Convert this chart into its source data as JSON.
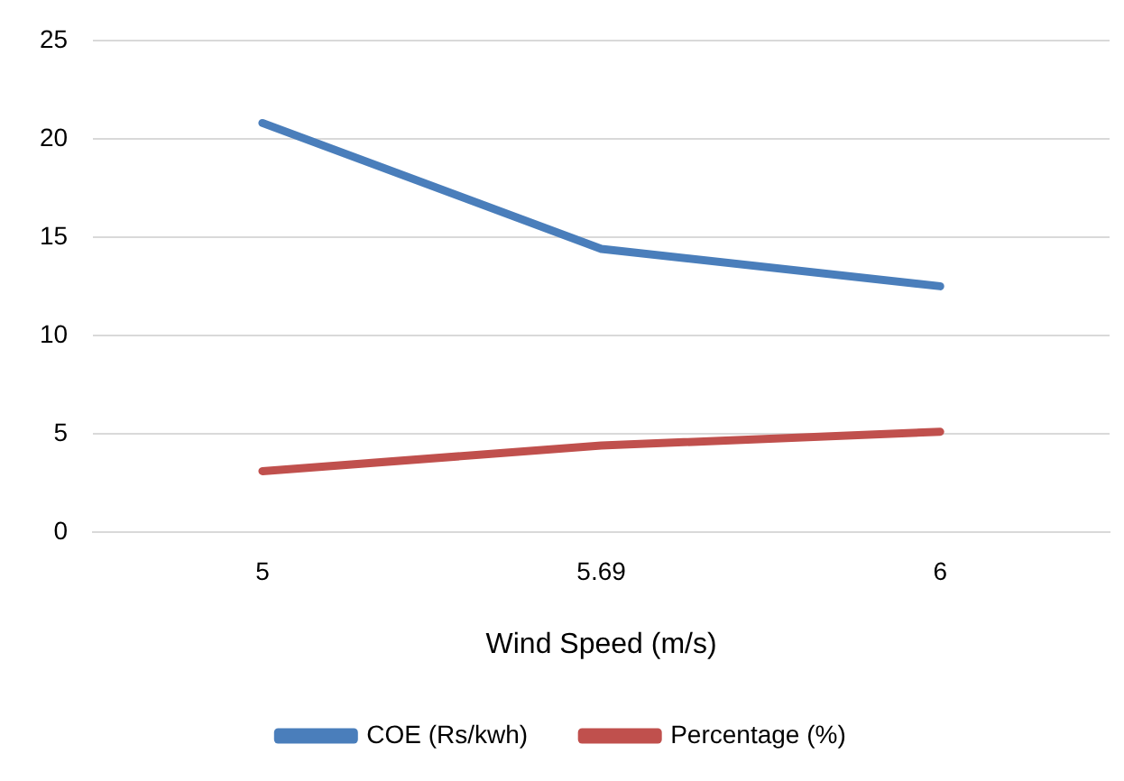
{
  "chart_data": {
    "type": "line",
    "xlabel": "Wind Speed (m/s)",
    "categories": [
      "5",
      "5.69",
      "6"
    ],
    "series": [
      {
        "name": "COE (Rs/kwh)",
        "color": "#4a7ebb",
        "values": [
          20.8,
          14.4,
          12.5
        ]
      },
      {
        "name": "Percentage (%)",
        "color": "#c0504d",
        "values": [
          3.1,
          4.4,
          5.1
        ]
      }
    ],
    "ylim": [
      0,
      25
    ],
    "yticks": [
      0,
      5,
      10,
      15,
      20,
      25
    ],
    "grid": "y",
    "legend": "bottom",
    "marker": "none",
    "line_style": "solid"
  }
}
